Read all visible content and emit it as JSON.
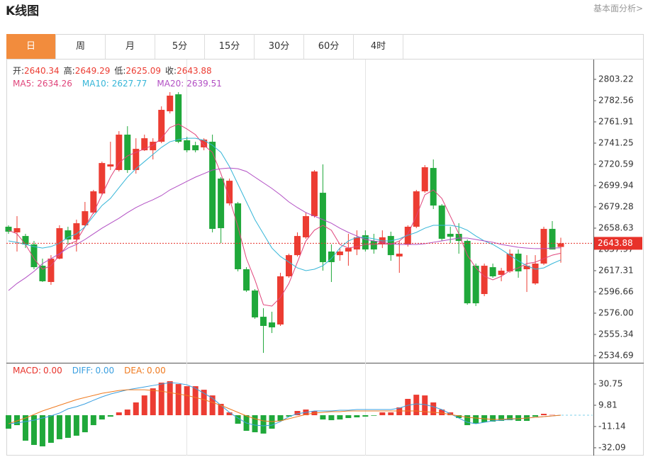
{
  "header": {
    "title": "K线图",
    "link": "基本面分析>"
  },
  "tabs": [
    {
      "label": "日",
      "active": true
    },
    {
      "label": "周",
      "active": false
    },
    {
      "label": "月",
      "active": false
    },
    {
      "label": "5分",
      "active": false
    },
    {
      "label": "15分",
      "active": false
    },
    {
      "label": "30分",
      "active": false
    },
    {
      "label": "60分",
      "active": false
    },
    {
      "label": "4时",
      "active": false
    }
  ],
  "chart_data": [
    {
      "type": "candlestick",
      "up_color": "#ec3c32",
      "down_color": "#1fa83a",
      "info": [
        {
          "name": "开:",
          "value": 2640.34
        },
        {
          "name": "高:",
          "value": 2649.29
        },
        {
          "name": "低:",
          "value": 2625.09
        },
        {
          "name": "收:",
          "value": 2643.88
        }
      ],
      "current": {
        "value": 2643.88,
        "color": "#e8322a"
      },
      "ylim": [
        2527.8,
        2822.5
      ],
      "yticks": [
        2803.22,
        2782.56,
        2761.91,
        2741.25,
        2720.59,
        2699.94,
        2679.28,
        2658.63,
        2637.97,
        2617.31,
        2596.66,
        {
          "value": 2576,
          "label": "2576.00"
        },
        2555.34,
        2534.69
      ],
      "open": [
        2660.0,
        2654.5,
        2651.0,
        2642.8,
        2622.1,
        2606.3,
        2629.0,
        2656.5,
        2647.6,
        2661.4,
        2673.7,
        2692.3,
        2718.5,
        2715.1,
        2749.5,
        2715.1,
        2734.3,
        2734.3,
        2742.6,
        2772.2,
        2788.7,
        2744.0,
        2739.2,
        2737.1,
        2742.6,
        2706.8,
        2682.7,
        2682.7,
        2618.7,
        2598.0,
        2572.5,
        2567.0,
        2565.0,
        2611.8,
        2632.4,
        2649.7,
        2670.3,
        2693.0,
        2635.9,
        2632.4,
        2635.9,
        2637.9,
        2651.7,
        2646.2,
        2642.8,
        2651.0,
        2631.1,
        2642.8,
        2660.0,
        2694.4,
        2717.1,
        2680.6,
        2653.1,
        2653.1,
        2646.2,
        2622.1,
        2594.6,
        2620.7,
        2613.2,
        2616.6,
        2633.8,
        2618.7,
        2604.9,
        2624.2,
        2657.9,
        2640.34
      ],
      "high": [
        2661.4,
        2670.3,
        2653.1,
        2646.2,
        2629.0,
        2632.4,
        2661.4,
        2660.0,
        2666.9,
        2684.1,
        2695.8,
        2723.3,
        2742.6,
        2752.9,
        2757.7,
        2746.0,
        2749.5,
        2746.0,
        2777.0,
        2790.8,
        2790.8,
        2747.4,
        2742.6,
        2746.0,
        2749.5,
        2708.2,
        2706.8,
        2684.1,
        2620.7,
        2599.4,
        2580.8,
        2577.4,
        2615.2,
        2633.8,
        2654.5,
        2673.7,
        2715.1,
        2720.6,
        2642.8,
        2639.3,
        2653.1,
        2656.5,
        2656.5,
        2653.1,
        2656.5,
        2655.2,
        2646.2,
        2661.4,
        2695.8,
        2719.9,
        2725.4,
        2682.0,
        2660.0,
        2663.4,
        2647.6,
        2624.2,
        2624.2,
        2624.2,
        2620.0,
        2637.9,
        2637.9,
        2632.4,
        2632.4,
        2660.0,
        2665.5,
        2649.29
      ],
      "low": [
        2653.1,
        2635.9,
        2639.3,
        2618.7,
        2606.3,
        2603.5,
        2628.3,
        2642.8,
        2635.9,
        2660.0,
        2672.4,
        2691.0,
        2715.1,
        2713.7,
        2712.3,
        2711.6,
        2733.6,
        2725.4,
        2741.2,
        2770.1,
        2741.2,
        2732.3,
        2732.3,
        2734.3,
        2654.5,
        2644.1,
        2680.6,
        2616.6,
        2596.6,
        2570.5,
        2537.4,
        2556.7,
        2563.6,
        2610.4,
        2631.1,
        2648.3,
        2668.9,
        2617.3,
        2606.3,
        2626.9,
        2622.1,
        2632.4,
        2635.9,
        2633.8,
        2639.3,
        2626.9,
        2615.2,
        2640.7,
        2658.6,
        2693.0,
        2677.2,
        2646.2,
        2644.1,
        2633.8,
        2584.2,
        2582.9,
        2592.5,
        2610.4,
        2607.0,
        2615.2,
        2610.4,
        2596.6,
        2603.5,
        2622.8,
        2637.9,
        2625.09
      ],
      "close": [
        2655.2,
        2658.6,
        2642.8,
        2620.7,
        2607.0,
        2629.0,
        2658.6,
        2647.6,
        2663.4,
        2675.1,
        2694.4,
        2721.9,
        2720.6,
        2749.5,
        2715.1,
        2735.7,
        2746.0,
        2742.6,
        2773.6,
        2787.4,
        2742.6,
        2734.3,
        2734.3,
        2744.7,
        2657.9,
        2658.6,
        2704.7,
        2618.7,
        2598.0,
        2571.9,
        2563.6,
        2562.2,
        2611.8,
        2632.4,
        2651.0,
        2670.3,
        2713.7,
        2625.6,
        2625.6,
        2635.9,
        2639.3,
        2649.7,
        2637.9,
        2637.9,
        2649.7,
        2632.4,
        2633.8,
        2660.0,
        2694.4,
        2717.8,
        2680.6,
        2648.3,
        2650.3,
        2646.2,
        2585.6,
        2585.6,
        2622.1,
        2611.8,
        2617.3,
        2633.8,
        2616.6,
        2622.1,
        2624.2,
        2657.9,
        2637.9,
        2643.88
      ],
      "series": [
        {
          "name": "MA5:",
          "color": "#e0457b",
          "legend": 2634.26,
          "values": [
            2656.6,
            2653.1,
            2642.8,
            2629.0,
            2618.7,
            2622.1,
            2632.4,
            2642.8,
            2646.2,
            2660.0,
            2673.7,
            2691.0,
            2708.2,
            2721.9,
            2728.8,
            2732.3,
            2735.7,
            2739.2,
            2746.0,
            2756.4,
            2759.8,
            2755.0,
            2749.5,
            2739.2,
            2732.3,
            2711.6,
            2687.5,
            2660.0,
            2629.0,
            2608.4,
            2584.2,
            2582.9,
            2591.2,
            2604.9,
            2625.6,
            2646.2,
            2656.6,
            2661.4,
            2656.6,
            2642.8,
            2639.3,
            2640.7,
            2642.8,
            2642.8,
            2643.5,
            2642.8,
            2646.2,
            2653.1,
            2670.3,
            2691.0,
            2695.8,
            2687.5,
            2670.3,
            2653.1,
            2632.4,
            2620.0,
            2611.8,
            2608.4,
            2611.8,
            2617.3,
            2620.0,
            2624.2,
            2625.6,
            2629.0,
            2632.4,
            2634.26
          ]
        },
        {
          "name": "MA10:",
          "color": "#36b6d8",
          "legend": 2627.77,
          "values": [
            2646.2,
            2644.8,
            2642.8,
            2640.7,
            2639.3,
            2640.7,
            2644.1,
            2649.7,
            2653.1,
            2660.0,
            2670.3,
            2680.6,
            2687.5,
            2697.9,
            2708.2,
            2716.4,
            2723.3,
            2730.2,
            2737.1,
            2742.6,
            2744.7,
            2746.0,
            2746.0,
            2744.0,
            2739.2,
            2732.3,
            2718.5,
            2701.3,
            2684.1,
            2666.9,
            2653.1,
            2639.3,
            2631.1,
            2625.6,
            2620.0,
            2617.3,
            2618.7,
            2622.1,
            2629.0,
            2639.3,
            2646.2,
            2649.7,
            2649.7,
            2648.3,
            2646.2,
            2646.2,
            2648.3,
            2651.7,
            2654.5,
            2658.6,
            2661.4,
            2661.4,
            2661.4,
            2660.0,
            2656.6,
            2651.0,
            2646.2,
            2642.8,
            2637.9,
            2632.4,
            2626.9,
            2622.1,
            2618.7,
            2620.0,
            2624.2,
            2627.77
          ]
        },
        {
          "name": "MA20:",
          "color": "#b24fc4",
          "legend": 2639.51,
          "values": [
            2598.0,
            2604.9,
            2610.4,
            2616.6,
            2624.2,
            2629.0,
            2633.8,
            2639.3,
            2642.8,
            2647.6,
            2653.1,
            2658.6,
            2663.4,
            2668.2,
            2673.7,
            2678.6,
            2682.7,
            2686.2,
            2690.3,
            2695.8,
            2699.9,
            2704.1,
            2708.2,
            2711.6,
            2715.1,
            2716.4,
            2717.1,
            2716.4,
            2713.7,
            2708.2,
            2702.7,
            2697.2,
            2691.0,
            2684.1,
            2678.6,
            2673.7,
            2670.3,
            2666.9,
            2663.4,
            2658.6,
            2654.5,
            2651.0,
            2647.6,
            2646.2,
            2644.9,
            2643.5,
            2642.8,
            2642.8,
            2642.8,
            2643.5,
            2644.9,
            2646.2,
            2647.6,
            2649.0,
            2649.0,
            2647.6,
            2646.2,
            2644.9,
            2642.8,
            2641.4,
            2640.0,
            2639.3,
            2638.7,
            2638.7,
            2639.3,
            2639.51
          ]
        }
      ]
    },
    {
      "type": "macd",
      "up_color": "#ec3c32",
      "down_color": "#1fa83a",
      "ylim": [
        -39.1,
        50.3
      ],
      "yticks": [
        30.75,
        9.81,
        -11.14,
        -32.09
      ],
      "series": [
        {
          "name": "MACD:",
          "type": "bar",
          "color": "#e8322a",
          "legend": {
            "value": 0,
            "label": "0.00"
          },
          "values": [
            -13.3,
            -9.8,
            -25.1,
            -29.3,
            -30.7,
            -27.2,
            -23.7,
            -22.3,
            -20.2,
            -16.8,
            -9.8,
            -4.2,
            -1.4,
            2.8,
            5.6,
            12.6,
            19.5,
            26.5,
            32.1,
            33.5,
            30.7,
            28.6,
            28.6,
            25.1,
            19.5,
            11.2,
            2.8,
            -8.4,
            -15.4,
            -16.8,
            -18.1,
            -13.3,
            -5.6,
            -1.4,
            4.2,
            5.6,
            4.2,
            -4.2,
            -4.9,
            -4.2,
            -2.8,
            -2.1,
            -1.4,
            -0.5,
            2.8,
            2.8,
            7.7,
            16.1,
            20.2,
            19.5,
            12.6,
            5.6,
            2.8,
            -2.8,
            -9.8,
            -8.4,
            -7.0,
            -6.3,
            -5.6,
            -4.9,
            -5.6,
            -5.6,
            -1.4,
            1.4,
            0.3,
            0
          ]
        },
        {
          "name": "DIFF:",
          "type": "line",
          "color": "#3a9fe0",
          "legend": {
            "value": 0,
            "label": "0.00"
          },
          "values": [
            -8.4,
            -7.7,
            -6.3,
            -4.9,
            -2.8,
            -0.7,
            2.1,
            6.3,
            8.4,
            11.2,
            14.7,
            18.1,
            20.9,
            23.0,
            25.1,
            26.5,
            27.9,
            29.3,
            30.7,
            32.1,
            31.4,
            30.0,
            26.5,
            21.6,
            16.8,
            9.8,
            2.8,
            -2.8,
            -7.7,
            -9.8,
            -10.5,
            -9.8,
            -6.3,
            -1.4,
            1.4,
            2.8,
            4.2,
            4.2,
            4.2,
            4.9,
            4.9,
            5.6,
            5.6,
            5.6,
            5.6,
            5.6,
            7.0,
            9.8,
            11.2,
            10.5,
            8.4,
            5.6,
            1.4,
            -2.8,
            -7.0,
            -8.4,
            -7.0,
            -5.6,
            -4.9,
            -4.2,
            -3.5,
            -2.8,
            -2.1,
            -1.4,
            -0.7,
            0
          ]
        },
        {
          "name": "DEA:",
          "type": "line",
          "color": "#ef7a1f",
          "legend": {
            "value": 0,
            "label": "0.00"
          },
          "values": [
            -8.4,
            -5.6,
            -2.8,
            0.7,
            4.2,
            7.0,
            9.8,
            12.6,
            15.4,
            17.5,
            19.5,
            21.6,
            23.0,
            24.4,
            25.1,
            25.1,
            25.1,
            24.4,
            23.7,
            22.3,
            20.9,
            19.5,
            17.5,
            15.4,
            12.6,
            9.8,
            6.3,
            2.8,
            -0.7,
            -3.5,
            -5.6,
            -6.3,
            -5.6,
            -3.5,
            -1.4,
            0.7,
            2.1,
            2.8,
            3.5,
            3.5,
            4.2,
            4.2,
            4.2,
            4.2,
            4.2,
            4.2,
            4.2,
            4.2,
            4.2,
            3.5,
            2.8,
            2.1,
            0.7,
            -0.7,
            -2.1,
            -2.8,
            -3.5,
            -4.2,
            -4.2,
            -3.5,
            -3.5,
            -2.8,
            -2.1,
            -1.4,
            -0.7,
            0
          ]
        }
      ]
    }
  ]
}
